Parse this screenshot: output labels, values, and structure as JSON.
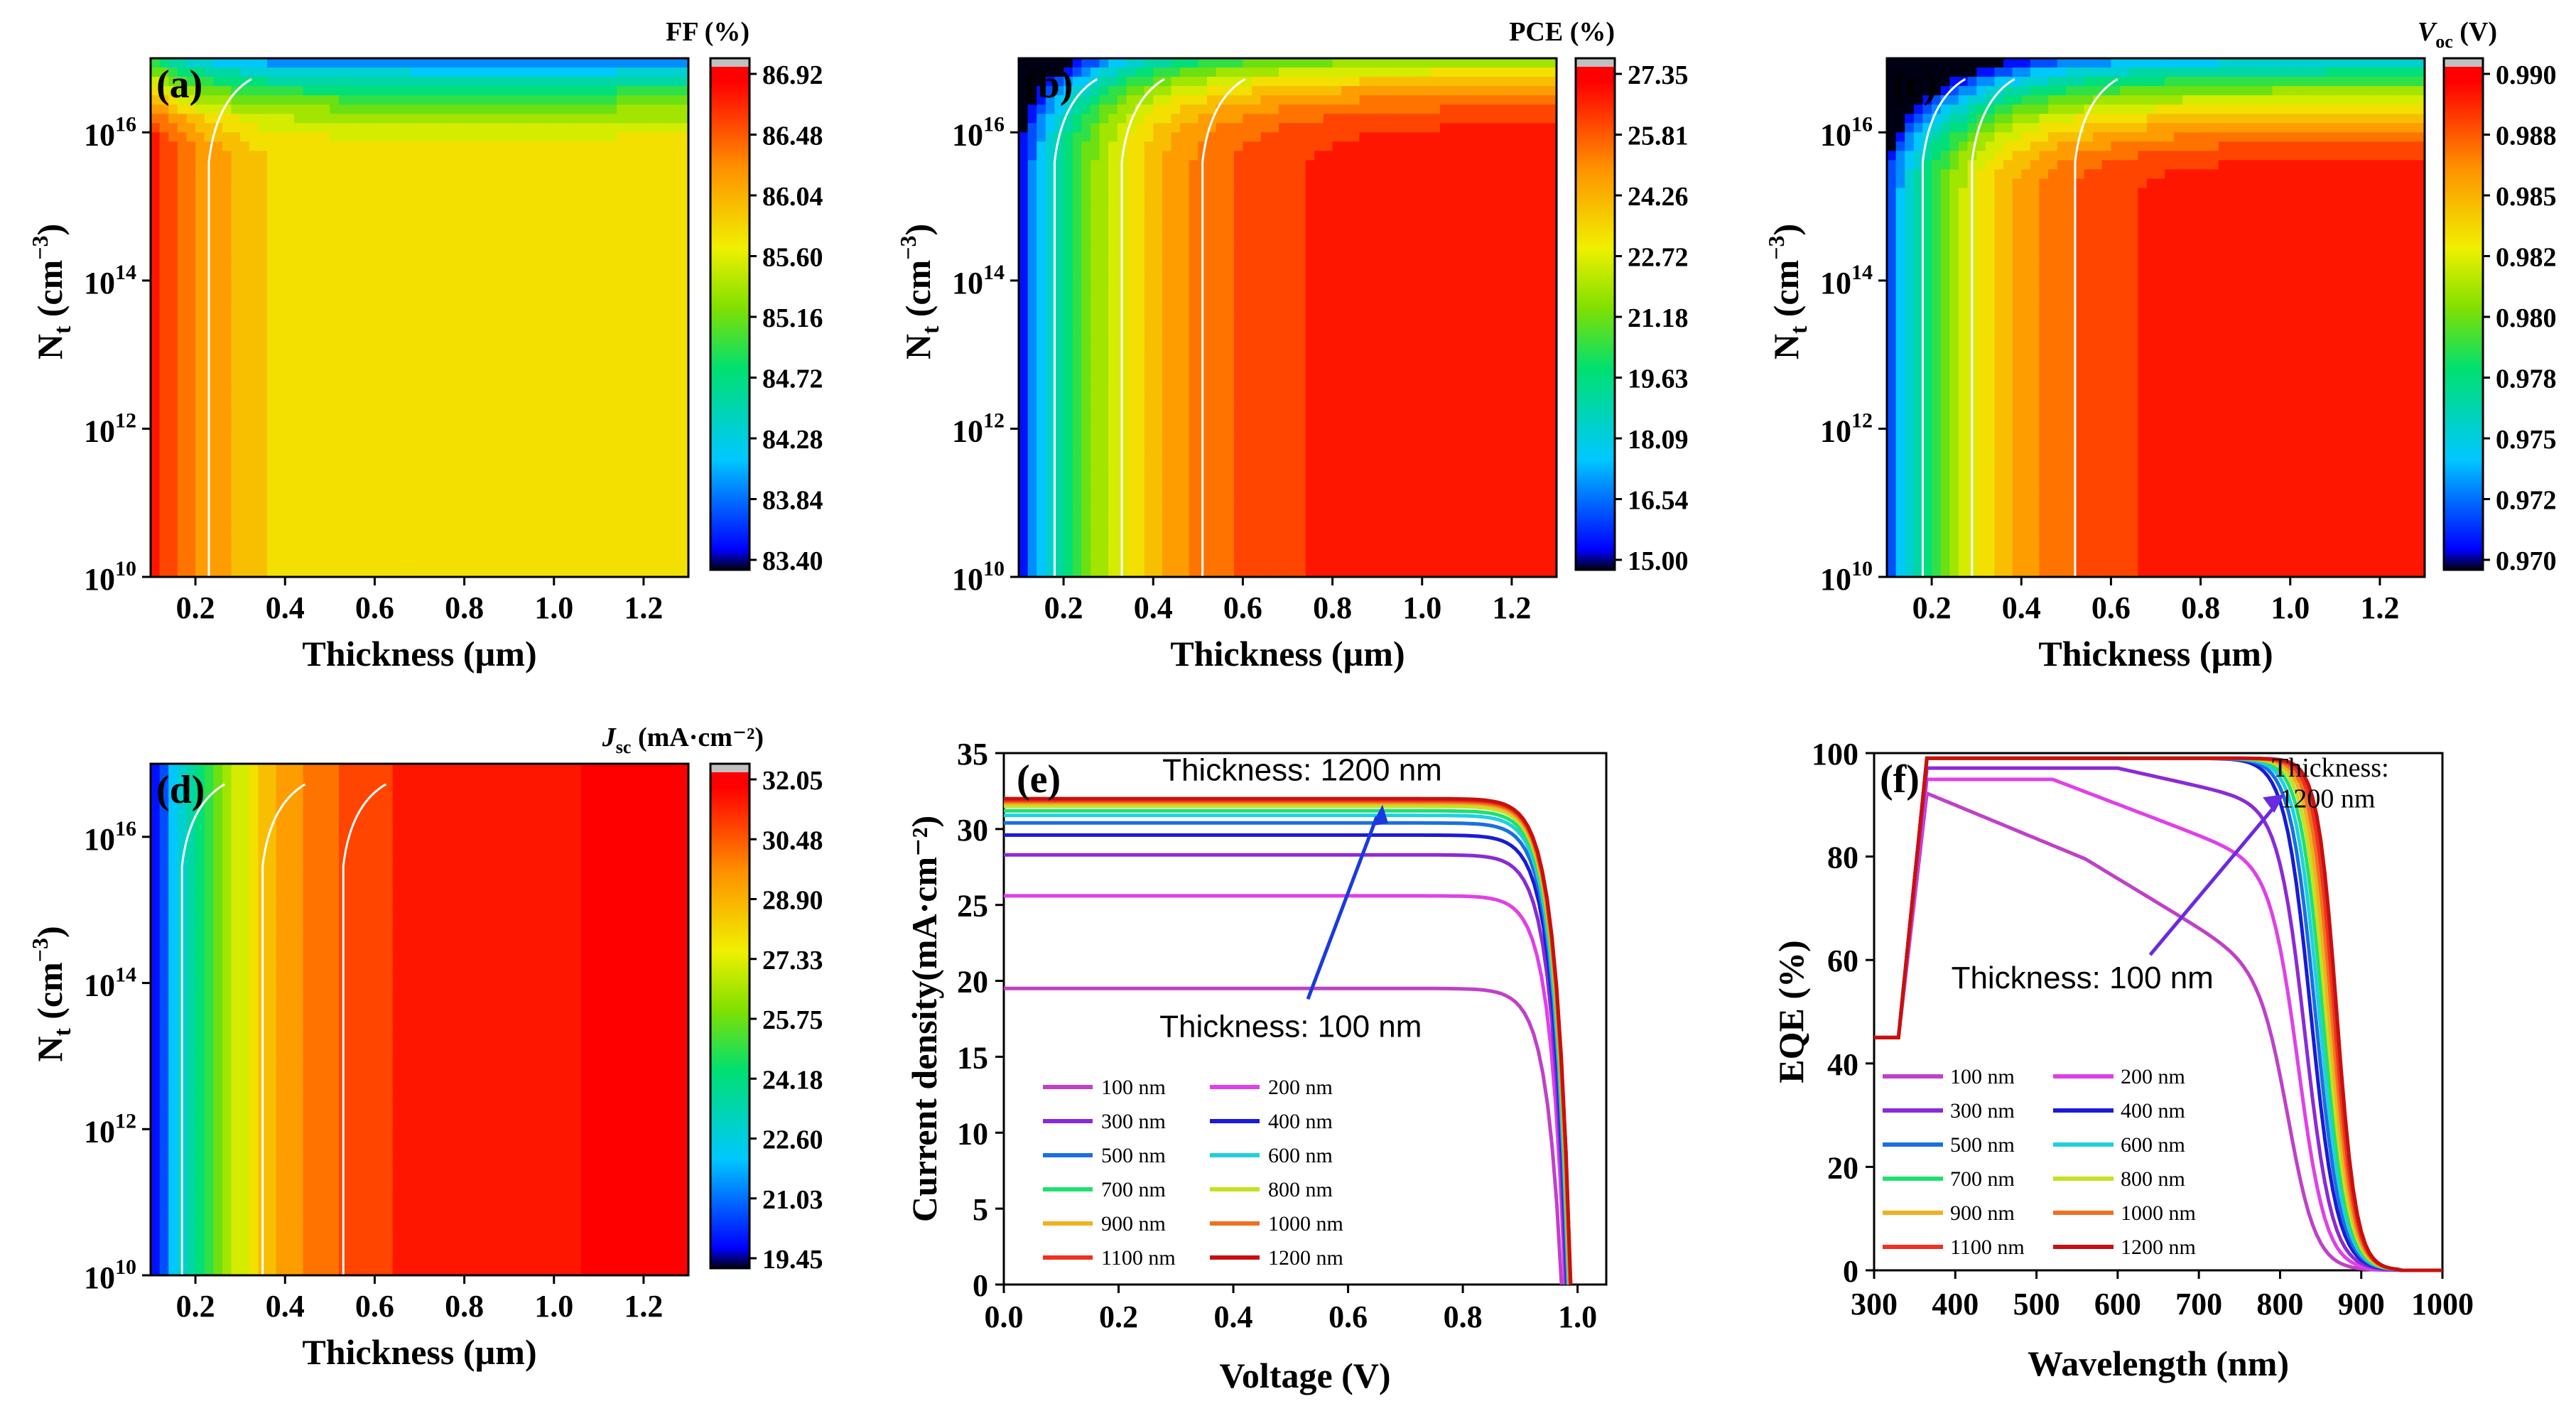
{
  "chart_data": [
    {
      "panel": "(a)",
      "type": "heatmap",
      "title": "FF (%)",
      "xlabel": "Thickness (µm)",
      "ylabel": "N_t (cm^-3)",
      "xlim": [
        0.1,
        1.3
      ],
      "xticks": [
        "0.2",
        "0.4",
        "0.6",
        "0.8",
        "1.0",
        "1.2"
      ],
      "ylim_log10": [
        10,
        17
      ],
      "yticks": [
        {
          "base": "10",
          "exp": "10"
        },
        {
          "base": "10",
          "exp": "12"
        },
        {
          "base": "10",
          "exp": "14"
        },
        {
          "base": "10",
          "exp": "16"
        }
      ],
      "colorbar": [
        "86.92",
        "86.48",
        "86.04",
        "85.60",
        "85.16",
        "84.72",
        "84.28",
        "83.84",
        "83.40"
      ],
      "zrange": [
        83.4,
        86.92
      ]
    },
    {
      "panel": "(b)",
      "type": "heatmap",
      "title": "PCE (%)",
      "xlabel": "Thickness (µm)",
      "ylabel": "N_t (cm^-3)",
      "xlim": [
        0.1,
        1.3
      ],
      "xticks": [
        "0.2",
        "0.4",
        "0.6",
        "0.8",
        "1.0",
        "1.2"
      ],
      "ylim_log10": [
        10,
        17
      ],
      "yticks": [
        {
          "base": "10",
          "exp": "10"
        },
        {
          "base": "10",
          "exp": "12"
        },
        {
          "base": "10",
          "exp": "14"
        },
        {
          "base": "10",
          "exp": "16"
        }
      ],
      "colorbar": [
        "27.35",
        "25.81",
        "24.26",
        "22.72",
        "21.18",
        "19.63",
        "18.09",
        "16.54",
        "15.00"
      ],
      "zrange": [
        15.0,
        27.35
      ]
    },
    {
      "panel": "(c)",
      "type": "heatmap",
      "title_main": "V",
      "title_sub": "oc",
      "title_unit": " (V)",
      "xlabel": "Thickness (µm)",
      "ylabel": "N_t (cm^-3)",
      "xlim": [
        0.1,
        1.3
      ],
      "xticks": [
        "0.2",
        "0.4",
        "0.6",
        "0.8",
        "1.0",
        "1.2"
      ],
      "ylim_log10": [
        10,
        17
      ],
      "yticks": [
        {
          "base": "10",
          "exp": "10"
        },
        {
          "base": "10",
          "exp": "12"
        },
        {
          "base": "10",
          "exp": "14"
        },
        {
          "base": "10",
          "exp": "16"
        }
      ],
      "colorbar": [
        "0.990",
        "0.988",
        "0.985",
        "0.982",
        "0.980",
        "0.978",
        "0.975",
        "0.972",
        "0.970"
      ],
      "zrange": [
        0.97,
        0.99
      ]
    },
    {
      "panel": "(d)",
      "type": "heatmap",
      "title_main": "J",
      "title_sub": "sc",
      "title_unit": " (mA·cm⁻²)",
      "xlabel": "Thickness (µm)",
      "ylabel": "N_t (cm^-3)",
      "xlim": [
        0.1,
        1.3
      ],
      "xticks": [
        "0.2",
        "0.4",
        "0.6",
        "0.8",
        "1.0",
        "1.2"
      ],
      "ylim_log10": [
        10,
        17
      ],
      "yticks": [
        {
          "base": "10",
          "exp": "10"
        },
        {
          "base": "10",
          "exp": "12"
        },
        {
          "base": "10",
          "exp": "14"
        },
        {
          "base": "10",
          "exp": "16"
        }
      ],
      "colorbar": [
        "32.05",
        "30.48",
        "28.90",
        "27.33",
        "25.75",
        "24.18",
        "22.60",
        "21.03",
        "19.45"
      ],
      "zrange": [
        19.45,
        32.05
      ]
    },
    {
      "panel": "(e)",
      "type": "line",
      "xlabel": "Voltage (V)",
      "ylabel": "Current density(mA·cm⁻²)",
      "xlim": [
        0,
        1.05
      ],
      "ylim": [
        0,
        35
      ],
      "xticks": [
        0.0,
        0.2,
        0.4,
        0.6,
        0.8,
        1.0
      ],
      "xtick_labels": [
        "0.0",
        "0.2",
        "0.4",
        "0.6",
        "0.8",
        "1.0"
      ],
      "yticks": [
        0,
        5,
        10,
        15,
        20,
        25,
        30,
        35
      ],
      "ytick_labels": [
        "0",
        "5",
        "10",
        "15",
        "20",
        "25",
        "30",
        "35"
      ],
      "annotation_top": "Thickness: 1200 nm",
      "annotation_bottom": "Thickness: 100 nm",
      "series": [
        {
          "name": "100 nm",
          "color": "#c040c8",
          "jsc": 19.5,
          "voc": 0.972
        },
        {
          "name": "200 nm",
          "color": "#e040e8",
          "jsc": 25.6,
          "voc": 0.978
        },
        {
          "name": "300 nm",
          "color": "#8a2ad8",
          "jsc": 28.3,
          "voc": 0.98
        },
        {
          "name": "400 nm",
          "color": "#1a1ad8",
          "jsc": 29.6,
          "voc": 0.982
        },
        {
          "name": "500 nm",
          "color": "#1a70e0",
          "jsc": 30.4,
          "voc": 0.983
        },
        {
          "name": "600 nm",
          "color": "#20d0e0",
          "jsc": 30.9,
          "voc": 0.984
        },
        {
          "name": "700 nm",
          "color": "#20e070",
          "jsc": 31.2,
          "voc": 0.985
        },
        {
          "name": "800 nm",
          "color": "#c8e020",
          "jsc": 31.5,
          "voc": 0.986
        },
        {
          "name": "900 nm",
          "color": "#f0b020",
          "jsc": 31.7,
          "voc": 0.986
        },
        {
          "name": "1000 nm",
          "color": "#f07020",
          "jsc": 31.8,
          "voc": 0.987
        },
        {
          "name": "1100 nm",
          "color": "#f03020",
          "jsc": 31.9,
          "voc": 0.988
        },
        {
          "name": "1200 nm",
          "color": "#c81010",
          "jsc": 32.0,
          "voc": 0.988
        }
      ]
    },
    {
      "panel": "(f)",
      "type": "line",
      "xlabel": "Wavelength (nm)",
      "ylabel": "EQE (%)",
      "xlim": [
        300,
        1000
      ],
      "ylim": [
        0,
        100
      ],
      "xticks": [
        300,
        400,
        500,
        600,
        700,
        800,
        900,
        1000
      ],
      "xtick_labels": [
        "300",
        "400",
        "500",
        "600",
        "700",
        "800",
        "900",
        "1000"
      ],
      "yticks": [
        0,
        20,
        40,
        60,
        80,
        100
      ],
      "ytick_labels": [
        "0",
        "20",
        "40",
        "60",
        "80",
        "100"
      ],
      "annotation_top_1": "Thickness:",
      "annotation_top_2": "1200 nm",
      "annotation_bottom": "Thickness: 100 nm",
      "series": [
        {
          "name": "100 nm",
          "color": "#c040c8"
        },
        {
          "name": "200 nm",
          "color": "#e040e8"
        },
        {
          "name": "300 nm",
          "color": "#8a2ad8"
        },
        {
          "name": "400 nm",
          "color": "#1a1ad8"
        },
        {
          "name": "500 nm",
          "color": "#1a70e0"
        },
        {
          "name": "600 nm",
          "color": "#20d0e0"
        },
        {
          "name": "700 nm",
          "color": "#20e070"
        },
        {
          "name": "800 nm",
          "color": "#c8e020"
        },
        {
          "name": "900 nm",
          "color": "#f0b020"
        },
        {
          "name": "1000 nm",
          "color": "#f07020"
        },
        {
          "name": "1100 nm",
          "color": "#f03020"
        },
        {
          "name": "1200 nm",
          "color": "#c81010"
        }
      ]
    }
  ]
}
